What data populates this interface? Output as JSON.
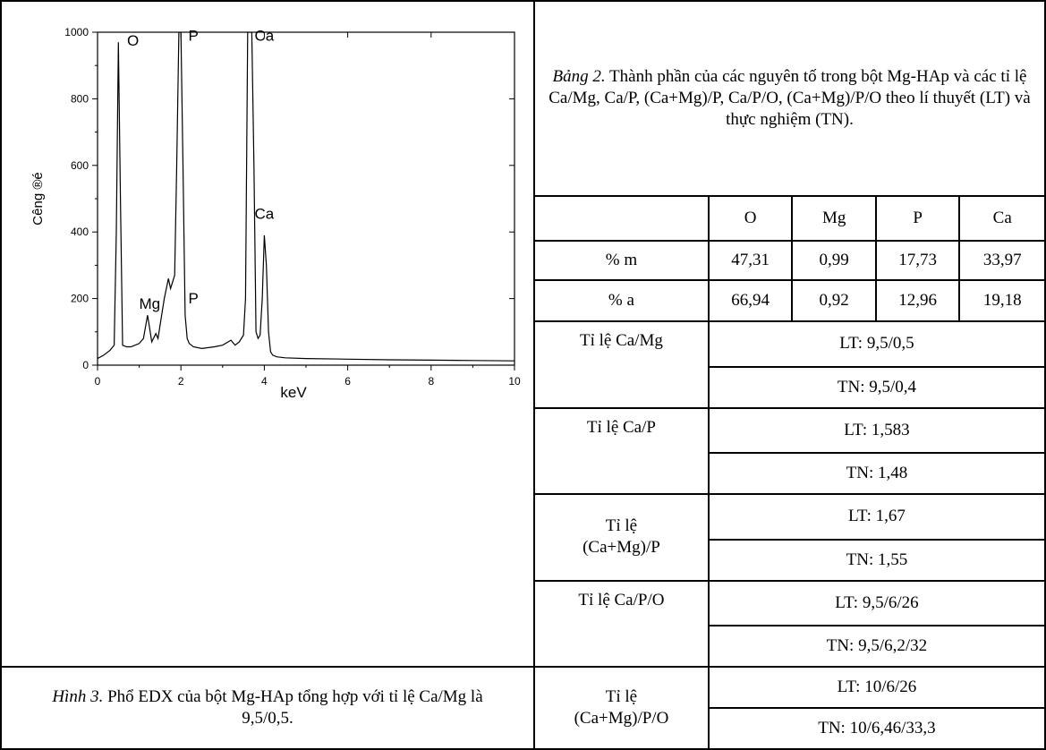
{
  "figure": {
    "caption_prefix": "Hình 3.",
    "caption_text": " Phổ EDX của bột Mg-HAp tổng hợp với tỉ lệ Ca/Mg là 9,5/0,5."
  },
  "table": {
    "caption_prefix": "Bảng 2.",
    "caption_text": " Thành phần của các nguyên tố trong bột Mg-HAp và các tỉ lệ Ca/Mg, Ca/P, (Ca+Mg)/P, Ca/P/O, (Ca+Mg)/P/O theo lí thuyết (LT) và thực nghiệm (TN).",
    "headers": [
      "",
      "O",
      "Mg",
      "P",
      "Ca"
    ],
    "rows": [
      {
        "label": "% m",
        "values": [
          "47,31",
          "0,99",
          "17,73",
          "33,97"
        ]
      },
      {
        "label": "% a",
        "values": [
          "66,94",
          "0,92",
          "12,96",
          "19,18"
        ]
      }
    ],
    "ratios": [
      {
        "label": "Tỉ lệ Ca/Mg",
        "lt": "LT: 9,5/0,5",
        "tn": "TN: 9,5/0,4"
      },
      {
        "label": "Tỉ lệ Ca/P",
        "lt": "LT: 1,583",
        "tn": "TN: 1,48"
      },
      {
        "label": "Tỉ lệ (Ca+Mg)/P",
        "lt": "LT: 1,67",
        "tn": "TN: 1,55"
      },
      {
        "label": "Tỉ lệ Ca/P/O",
        "lt": "LT: 9,5/6/26",
        "tn": "TN: 9,5/6,2/32"
      },
      {
        "label": "Tỉ lệ (Ca+Mg)/P/O",
        "lt": "LT: 10/6/26",
        "tn": "TN: 10/6,46/33,3"
      }
    ]
  },
  "chart_data": {
    "type": "line",
    "xlabel": "keV",
    "ylabel": "C­êng ®é",
    "xlim": [
      0,
      10
    ],
    "ylim": [
      0,
      1000
    ],
    "xticks": [
      "0",
      "2",
      "4",
      "6",
      "8",
      "10"
    ],
    "yticks": [
      "0",
      "200",
      "400",
      "600",
      "800",
      "1000"
    ],
    "series": [
      {
        "x": [
          0,
          0.15,
          0.3,
          0.4,
          0.45,
          0.5,
          0.55,
          0.6,
          0.7,
          0.8,
          0.9,
          1.0,
          1.1,
          1.2,
          1.25,
          1.3,
          1.4,
          1.45,
          1.5,
          1.6,
          1.7,
          1.75,
          1.85,
          1.9,
          1.95,
          2.0,
          2.05,
          2.1,
          2.15,
          2.2,
          2.3,
          2.5,
          2.8,
          3.0,
          3.2,
          3.3,
          3.4,
          3.5,
          3.55,
          3.6,
          3.65,
          3.7,
          3.75,
          3.8,
          3.85,
          3.9,
          3.95,
          4.0,
          4.05,
          4.1,
          4.15,
          4.2,
          4.3,
          4.5,
          5,
          6,
          7,
          8,
          9,
          10
        ],
        "values": [
          20,
          30,
          45,
          60,
          400,
          970,
          500,
          60,
          55,
          55,
          60,
          65,
          80,
          150,
          110,
          70,
          95,
          80,
          120,
          200,
          260,
          230,
          270,
          600,
          1000,
          1000,
          600,
          150,
          80,
          65,
          55,
          50,
          55,
          60,
          75,
          60,
          70,
          90,
          200,
          1000,
          1000,
          1000,
          600,
          100,
          80,
          90,
          200,
          390,
          300,
          100,
          40,
          30,
          25,
          22,
          20,
          18,
          16,
          15,
          14,
          13
        ]
      }
    ],
    "peak_labels": [
      {
        "text": "O",
        "x": 0.85,
        "y": 960
      },
      {
        "text": "P",
        "x": 2.3,
        "y": 975
      },
      {
        "text": "Ca",
        "x": 4.0,
        "y": 975
      },
      {
        "text": "Ca",
        "x": 4.0,
        "y": 440
      },
      {
        "text": "Mg",
        "x": 1.25,
        "y": 170
      },
      {
        "text": "P",
        "x": 2.3,
        "y": 185
      }
    ]
  }
}
